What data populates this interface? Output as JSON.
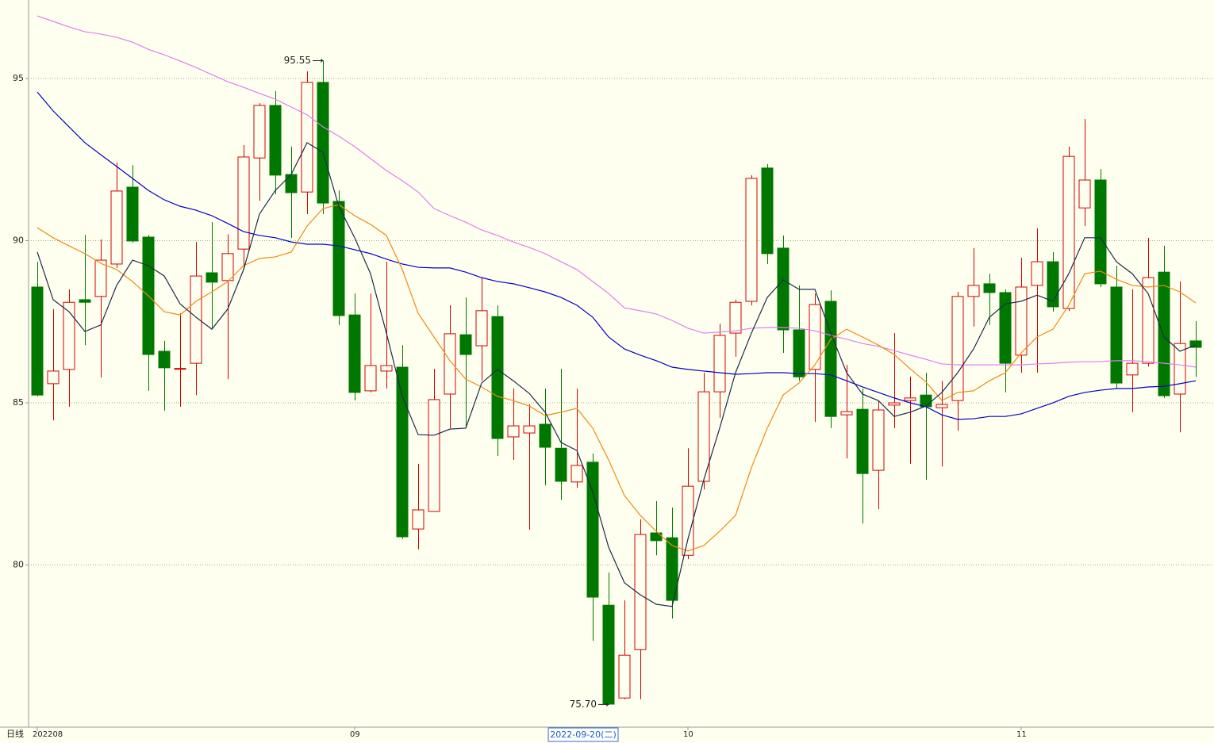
{
  "chart_data": {
    "type": "candlestick",
    "period_label": "日线",
    "cursor_label": "2022-09-20(二)",
    "categories": [
      "202208",
      null,
      null,
      null,
      null,
      null,
      null,
      null,
      null,
      null,
      null,
      null,
      null,
      null,
      null,
      null,
      null,
      null,
      null,
      null,
      "09",
      null,
      null,
      null,
      null,
      null,
      null,
      null,
      null,
      null,
      null,
      null,
      null,
      null,
      null,
      null,
      null,
      null,
      null,
      null,
      null,
      "10",
      null,
      null,
      null,
      null,
      null,
      null,
      null,
      null,
      null,
      null,
      null,
      null,
      null,
      null,
      null,
      null,
      null,
      null,
      null,
      null,
      "11",
      null,
      null,
      null,
      null,
      null,
      null,
      null,
      null,
      null,
      null,
      null
    ],
    "open": [
      88.57,
      85.59,
      86.03,
      88.18,
      88.28,
      89.28,
      91.65,
      90.11,
      86.59,
      86.05,
      86.22,
      89.01,
      88.77,
      89.74,
      92.55,
      94.17,
      92.04,
      91.5,
      94.88,
      91.21,
      87.71,
      85.37,
      85.98,
      86.1,
      81.11,
      81.65,
      85.27,
      87.1,
      86.76,
      87.66,
      83.95,
      84.07,
      84.34,
      83.6,
      82.56,
      83.17,
      78.76,
      75.9,
      77.39,
      80.99,
      80.84,
      80.3,
      82.58,
      85.34,
      87.15,
      88.13,
      92.24,
      89.77,
      87.25,
      86.03,
      88.13,
      84.63,
      84.8,
      82.92,
      84.93,
      85.07,
      85.24,
      84.85,
      85.07,
      88.28,
      88.67,
      88.4,
      86.47,
      88.62,
      89.35,
      87.91,
      91.01,
      91.87,
      88.57,
      85.86,
      86.22,
      89.03,
      85.27,
      86.91
    ],
    "high": [
      89.35,
      87.89,
      88.5,
      90.18,
      90.04,
      92.41,
      92.33,
      90.18,
      86.91,
      87.76,
      89.96,
      90.57,
      90.2,
      92.95,
      94.24,
      94.61,
      92.9,
      95.22,
      95.55,
      91.55,
      88.37,
      88.37,
      89.35,
      86.78,
      83.12,
      86.05,
      88.01,
      88.25,
      88.86,
      88.0,
      85.44,
      84.95,
      85.44,
      86.05,
      85.44,
      83.44,
      79.77,
      78.91,
      81.41,
      81.97,
      81.77,
      83.6,
      85.93,
      87.44,
      88.18,
      92.02,
      92.36,
      90.16,
      88.62,
      88.37,
      88.47,
      86.17,
      85.44,
      85.07,
      87.15,
      85.81,
      85.93,
      85.68,
      88.42,
      89.77,
      88.98,
      88.5,
      89.47,
      90.38,
      89.65,
      92.9,
      93.75,
      92.21,
      89.23,
      88.5,
      90.09,
      89.84,
      88.74,
      87.52
    ],
    "low": [
      85.2,
      84.46,
      84.88,
      86.78,
      85.78,
      89.16,
      89.94,
      85.37,
      84.76,
      84.88,
      85.24,
      87.27,
      85.73,
      89.11,
      91.23,
      91.43,
      90.09,
      90.82,
      90.82,
      87.4,
      85.07,
      85.32,
      85.44,
      80.8,
      80.48,
      81.65,
      84.22,
      84.22,
      85.68,
      83.36,
      83.24,
      81.09,
      82.46,
      82.01,
      82.38,
      77.66,
      75.7,
      75.86,
      75.86,
      80.3,
      78.35,
      80.18,
      82.33,
      84.54,
      86.42,
      88.0,
      89.28,
      86.54,
      85.68,
      84.41,
      84.22,
      83.29,
      81.28,
      81.72,
      84.22,
      83.12,
      82.63,
      83.04,
      84.14,
      87.35,
      87.4,
      85.32,
      85.93,
      85.93,
      87.81,
      87.83,
      90.45,
      88.57,
      85.44,
      84.71,
      86.12,
      85.15,
      84.09,
      85.8
    ],
    "close": [
      85.24,
      85.98,
      88.1,
      88.1,
      89.4,
      91.53,
      89.99,
      86.49,
      86.08,
      86.06,
      88.91,
      88.72,
      89.6,
      92.58,
      94.17,
      92.02,
      91.48,
      94.88,
      91.16,
      87.69,
      85.32,
      86.15,
      86.15,
      80.87,
      81.7,
      85.1,
      87.13,
      86.49,
      87.84,
      83.9,
      84.29,
      84.29,
      83.63,
      82.58,
      83.07,
      79.01,
      75.71,
      77.22,
      80.94,
      80.75,
      78.91,
      82.43,
      85.34,
      87.08,
      88.1,
      91.92,
      89.6,
      87.25,
      85.8,
      88.03,
      84.58,
      84.73,
      82.82,
      84.78,
      85.0,
      85.15,
      84.88,
      84.95,
      88.28,
      88.62,
      88.4,
      86.22,
      88.57,
      89.35,
      87.96,
      92.6,
      91.87,
      88.67,
      85.61,
      86.22,
      88.86,
      85.22,
      86.83,
      86.71
    ],
    "up_color": "#d40000",
    "down_color": "#007800",
    "ma": [
      {
        "color": "#e07ef0",
        "values": [
          96.93,
          96.76,
          96.59,
          96.44,
          96.37,
          96.27,
          96.12,
          95.9,
          95.73,
          95.54,
          95.34,
          95.12,
          94.9,
          94.73,
          94.54,
          94.36,
          94.12,
          93.88,
          93.51,
          93.22,
          92.9,
          92.53,
          92.16,
          91.85,
          91.5,
          90.99,
          90.77,
          90.57,
          90.33,
          90.16,
          89.96,
          89.79,
          89.6,
          89.35,
          89.11,
          88.74,
          88.37,
          87.93,
          87.84,
          87.74,
          87.54,
          87.3,
          87.15,
          87.18,
          87.22,
          87.3,
          87.32,
          87.32,
          87.3,
          87.22,
          87.08,
          86.96,
          86.83,
          86.74,
          86.61,
          86.47,
          86.34,
          86.2,
          86.17,
          86.17,
          86.17,
          86.17,
          86.17,
          86.2,
          86.22,
          86.25,
          86.27,
          86.27,
          86.3,
          86.3,
          86.27,
          86.22,
          86.17,
          86.1
        ]
      },
      {
        "color": "#0000c8",
        "values": [
          94.58,
          94.0,
          93.51,
          93.02,
          92.65,
          92.29,
          91.92,
          91.55,
          91.26,
          91.06,
          90.94,
          90.77,
          90.53,
          90.28,
          90.16,
          90.09,
          89.96,
          89.89,
          89.89,
          89.84,
          89.72,
          89.6,
          89.43,
          89.28,
          89.18,
          89.16,
          89.16,
          89.03,
          88.86,
          88.74,
          88.67,
          88.55,
          88.42,
          88.25,
          88.01,
          87.64,
          87.03,
          86.66,
          86.47,
          86.3,
          86.1,
          86.03,
          85.98,
          85.93,
          85.88,
          85.9,
          85.93,
          85.93,
          85.9,
          85.9,
          85.86,
          85.68,
          85.49,
          85.32,
          85.15,
          85.0,
          84.88,
          84.63,
          84.49,
          84.51,
          84.58,
          84.58,
          84.66,
          84.83,
          85.0,
          85.2,
          85.32,
          85.39,
          85.44,
          85.44,
          85.49,
          85.51,
          85.59,
          85.68
        ]
      },
      {
        "color": "#f08a10",
        "values": [
          90.4,
          90.09,
          89.84,
          89.6,
          89.3,
          89.11,
          88.74,
          88.3,
          87.81,
          87.71,
          88.13,
          88.42,
          88.74,
          89.23,
          89.45,
          89.5,
          89.65,
          90.45,
          90.99,
          91.11,
          90.77,
          90.5,
          90.16,
          89.11,
          87.76,
          87.03,
          86.3,
          85.73,
          85.49,
          85.2,
          85.07,
          84.9,
          84.61,
          84.71,
          84.83,
          84.22,
          83.24,
          82.14,
          81.53,
          81.04,
          80.6,
          80.43,
          80.6,
          81.04,
          81.53,
          83.0,
          84.22,
          85.24,
          85.61,
          86.17,
          86.96,
          87.27,
          87.03,
          86.78,
          86.49,
          86.05,
          85.64,
          85.07,
          85.32,
          85.37,
          85.68,
          85.93,
          86.54,
          87.03,
          87.27,
          88.01,
          88.98,
          89.06,
          88.81,
          88.62,
          88.57,
          88.62,
          88.42,
          88.08
        ]
      },
      {
        "color": "#1c2a4c",
        "values": [
          89.65,
          88.18,
          87.81,
          87.2,
          87.4,
          88.62,
          89.4,
          89.23,
          88.91,
          88.05,
          87.64,
          87.27,
          87.89,
          89.11,
          90.82,
          91.55,
          92.04,
          93.02,
          92.73,
          91.06,
          90.09,
          88.98,
          87.15,
          85.2,
          84.02,
          84.0,
          84.19,
          84.22,
          85.61,
          86.03,
          85.68,
          85.29,
          84.71,
          83.78,
          83.53,
          82.26,
          80.55,
          79.45,
          79.08,
          78.79,
          78.72,
          80.8,
          82.63,
          84.22,
          85.93,
          87.15,
          88.25,
          88.79,
          88.5,
          88.5,
          87.15,
          85.93,
          85.27,
          85.07,
          84.58,
          84.71,
          84.9,
          85.32,
          85.93,
          86.66,
          87.64,
          88.05,
          88.13,
          88.32,
          88.13,
          88.98,
          90.09,
          90.09,
          89.35,
          88.98,
          88.37,
          87.03,
          86.59,
          86.78
        ]
      }
    ],
    "annotations": [
      {
        "value": 95.55,
        "label": "95.55"
      },
      {
        "value": 75.7,
        "label": "75.70"
      }
    ],
    "ylim": [
      75.05,
      97.42
    ],
    "yticks": [
      80,
      85,
      90,
      95
    ],
    "grid": true
  }
}
